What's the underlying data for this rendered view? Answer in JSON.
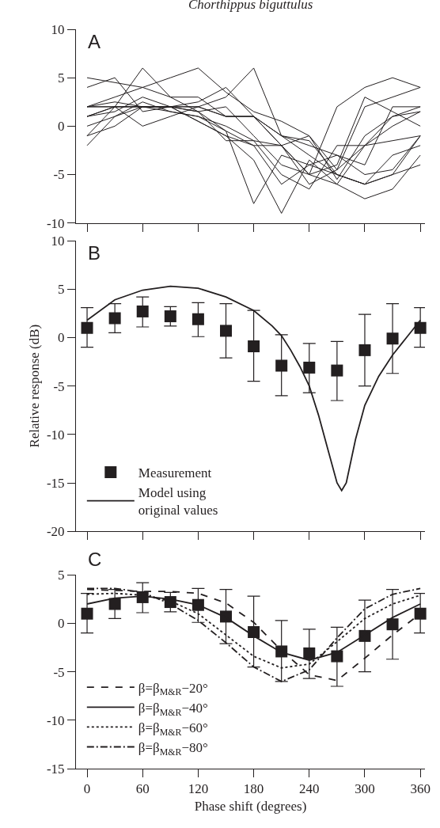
{
  "chart_data": [
    {
      "type": "line",
      "title": "Chorthippus biguttulus",
      "annotations": [
        "A"
      ],
      "x": [
        0,
        30,
        60,
        90,
        120,
        150,
        180,
        210,
        240,
        270,
        300,
        330,
        360
      ],
      "xlim": [
        -12,
        365
      ],
      "xticks": [
        0,
        60,
        120,
        180,
        240,
        300,
        360
      ],
      "ylim": [
        -10,
        10
      ],
      "yticks": [
        -10,
        -5,
        0,
        5,
        10
      ],
      "tick_labels": "y",
      "legend": false,
      "series": [
        {
          "color": "#231f20",
          "values": [
            5,
            4.5,
            4,
            3,
            3,
            1,
            1,
            -1,
            -2,
            -3,
            -5,
            -4.5,
            -1
          ]
        },
        {
          "color": "#231f20",
          "values": [
            4,
            5,
            1.5,
            2,
            2,
            3,
            6,
            -1,
            -3,
            -5,
            -6,
            -3,
            -2
          ]
        },
        {
          "color": "#231f20",
          "values": [
            2,
            3,
            4,
            5,
            6,
            3.5,
            1.5,
            0.5,
            -1,
            -4.5,
            2,
            3,
            4
          ]
        },
        {
          "color": "#231f20",
          "values": [
            2,
            2.5,
            2,
            2,
            2.5,
            4,
            1,
            -2,
            -6,
            -4.5,
            -2,
            1,
            1.5
          ]
        },
        {
          "color": "#231f20",
          "values": [
            2,
            2,
            2,
            2,
            2,
            1,
            1,
            -2,
            -5,
            2,
            4,
            5,
            4
          ]
        },
        {
          "color": "#231f20",
          "values": [
            1,
            1.5,
            3,
            2,
            1.5,
            2,
            -1,
            -4,
            -5,
            -6,
            -7.5,
            -6.5,
            -3
          ]
        },
        {
          "color": "#231f20",
          "values": [
            1,
            2,
            2,
            1.5,
            1,
            -0.5,
            -2,
            -6,
            -4,
            -3,
            -4,
            2,
            2
          ]
        },
        {
          "color": "#231f20",
          "values": [
            1,
            2,
            2,
            2,
            0.5,
            -1,
            -3.5,
            -9,
            -3.5,
            -6,
            -2,
            0,
            1.5
          ]
        },
        {
          "color": "#231f20",
          "values": [
            0,
            1,
            2.5,
            1.5,
            1,
            0,
            -1.5,
            -2,
            -5,
            -4,
            3,
            1.5,
            0
          ]
        },
        {
          "color": "#231f20",
          "values": [
            -1,
            2,
            6,
            3,
            1.5,
            -0.5,
            -8,
            -3,
            -4,
            -5,
            -6,
            -5,
            -4
          ]
        },
        {
          "color": "#231f20",
          "values": [
            -1,
            0,
            2,
            2,
            0.5,
            -1,
            -2,
            -2,
            -1,
            -5.5,
            -1,
            1,
            2
          ]
        },
        {
          "color": "#231f20",
          "values": [
            -2,
            1,
            2,
            2,
            1.5,
            -1.5,
            -1.5,
            -5,
            -6.5,
            -2,
            -2,
            -1.5,
            -1
          ]
        },
        {
          "color": "#231f20",
          "values": [
            2,
            2,
            0,
            1,
            2,
            1,
            1,
            -1,
            -1.5,
            -5,
            -6,
            -5,
            -1
          ]
        }
      ]
    },
    {
      "type": "line",
      "ylabel": "Relative response (dB)",
      "annotations": [
        "B"
      ],
      "x": [
        0,
        30,
        60,
        90,
        120,
        150,
        180,
        210,
        240,
        270,
        300,
        330,
        360
      ],
      "xlim": [
        -12,
        365
      ],
      "xticks": [
        0,
        60,
        120,
        180,
        240,
        300,
        360
      ],
      "ylim": [
        -20,
        10
      ],
      "yticks": [
        -20,
        -15,
        -10,
        -5,
        0,
        5,
        10
      ],
      "tick_labels": "y",
      "legend": "bottom left",
      "series": [
        {
          "type": "scatter",
          "name": "Measurement",
          "color": "#231f20",
          "marker": "square",
          "values": [
            1.0,
            2.0,
            2.7,
            2.2,
            1.9,
            0.7,
            -0.9,
            -2.9,
            -3.1,
            -3.4,
            -1.3,
            -0.1,
            1.0
          ],
          "errors": [
            [
              -1.0,
              3.1
            ],
            [
              0.5,
              3.5
            ],
            [
              1.1,
              4.2
            ],
            [
              1.2,
              3.2
            ],
            [
              0.1,
              3.6
            ],
            [
              -2.1,
              3.5
            ],
            [
              -4.5,
              2.8
            ],
            [
              -6.0,
              0.3
            ],
            [
              -5.7,
              -0.6
            ],
            [
              -6.5,
              -0.4
            ],
            [
              -5.0,
              2.4
            ],
            [
              -3.7,
              3.5
            ],
            [
              -1.0,
              3.1
            ]
          ]
        },
        {
          "type": "line",
          "name": "Model using\noriginal values",
          "color": "#231f20",
          "line_style": "solid",
          "x": [
            0,
            30,
            60,
            90,
            120,
            150,
            180,
            200,
            210,
            220,
            230,
            240,
            250,
            260,
            270,
            275,
            280,
            290,
            300,
            315,
            330,
            345,
            360
          ],
          "values": [
            1.8,
            3.9,
            4.9,
            5.3,
            5.1,
            4.2,
            2.8,
            1.2,
            0.2,
            -1.3,
            -3,
            -5,
            -8,
            -11.5,
            -15,
            -15.8,
            -15,
            -10.5,
            -7,
            -4,
            -1.8,
            0,
            1.8
          ]
        }
      ]
    },
    {
      "type": "line",
      "xlabel": "Phase shift (degrees)",
      "annotations": [
        "C"
      ],
      "x": [
        0,
        30,
        60,
        90,
        120,
        150,
        180,
        210,
        240,
        270,
        300,
        330,
        360
      ],
      "xlim": [
        -12,
        365
      ],
      "xticks": [
        0,
        60,
        120,
        180,
        240,
        300,
        360
      ],
      "ylim": [
        -15,
        5
      ],
      "yticks": [
        -15,
        -10,
        -5,
        0,
        5
      ],
      "legend": "bottom left",
      "series": [
        {
          "type": "scatter",
          "color": "#231f20",
          "marker": "square",
          "values": [
            1.0,
            2.0,
            2.7,
            2.2,
            1.9,
            0.7,
            -0.9,
            -2.9,
            -3.1,
            -3.4,
            -1.3,
            -0.1,
            1.0
          ],
          "errors": [
            [
              -1.0,
              3.1
            ],
            [
              0.5,
              3.5
            ],
            [
              1.1,
              4.2
            ],
            [
              1.2,
              3.2
            ],
            [
              0.1,
              3.6
            ],
            [
              -2.1,
              3.5
            ],
            [
              -4.5,
              2.8
            ],
            [
              -6.0,
              0.3
            ],
            [
              -5.7,
              -0.6
            ],
            [
              -6.5,
              -0.4
            ],
            [
              -5.0,
              2.4
            ],
            [
              -3.7,
              3.5
            ],
            [
              -1.0,
              3.1
            ]
          ]
        },
        {
          "type": "line",
          "name": "β=β$_{M&R}$−20°",
          "color": "#231f20",
          "line_style": "dashed",
          "values": [
            3.5,
            3.4,
            3.3,
            3.3,
            3.1,
            2.1,
            0.1,
            -2.8,
            -5.3,
            -5.9,
            -3.6,
            -1.2,
            1.0
          ]
        },
        {
          "type": "line",
          "name": "β=β$_{M&R}$−40°",
          "color": "#231f20",
          "line_style": "solid",
          "values": [
            2,
            2.6,
            2.8,
            2.5,
            1.9,
            0.6,
            -1.3,
            -3,
            -3.8,
            -3,
            -1.2,
            0.6,
            2
          ]
        },
        {
          "type": "line",
          "name": "β=β$_{M&R}$−60°",
          "color": "#231f20",
          "line_style": "dotted",
          "values": [
            3,
            3.1,
            2.9,
            2.3,
            1,
            -1.2,
            -3.4,
            -4.6,
            -4.2,
            -1.9,
            0.5,
            2,
            2.9
          ]
        },
        {
          "type": "line",
          "name": "β=β$_{M&R}$−80°",
          "color": "#231f20",
          "line_style": "dashdot",
          "values": [
            3.6,
            3.6,
            3.2,
            2.0,
            0.3,
            -2.0,
            -4.5,
            -6,
            -4.8,
            -1.5,
            1.5,
            3,
            3.6
          ]
        }
      ]
    }
  ]
}
